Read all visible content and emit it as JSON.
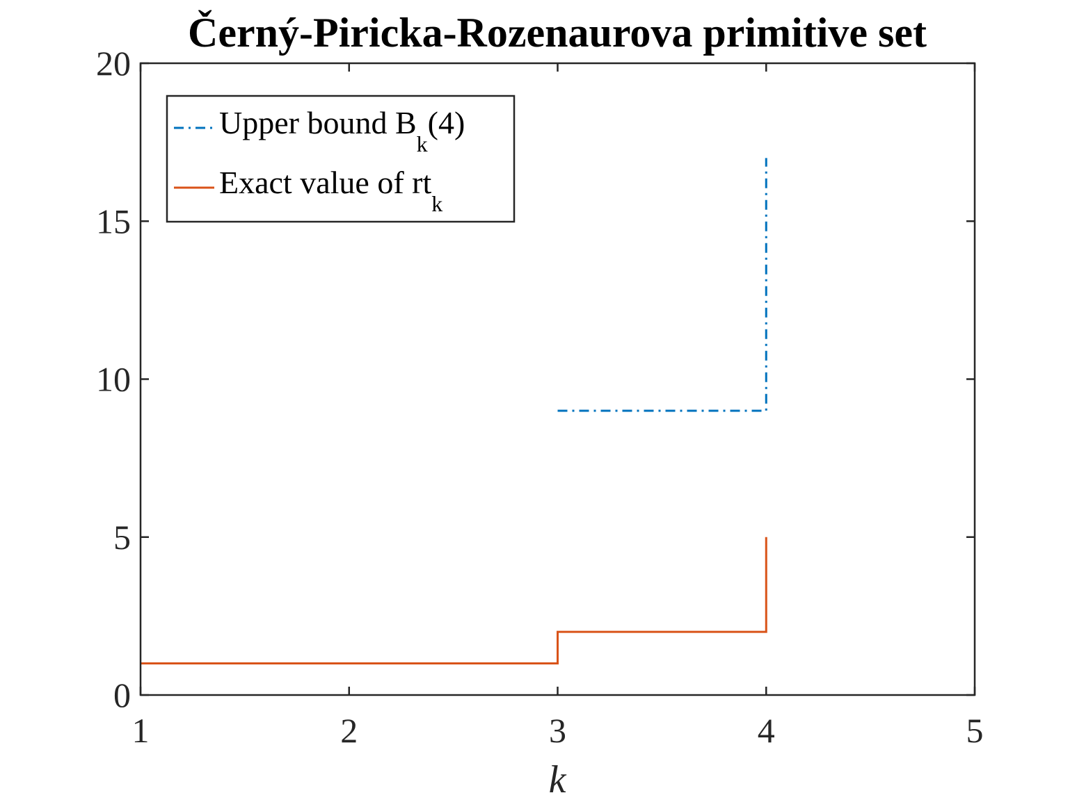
{
  "chart_data": {
    "type": "line",
    "title": "Černý-Piricka-Rozenaurova primitive set",
    "xlabel": "k",
    "ylabel": "",
    "xlim": [
      1,
      5
    ],
    "ylim": [
      0,
      20
    ],
    "xticks": [
      "1",
      "2",
      "3",
      "4",
      "5"
    ],
    "yticks": [
      "0",
      "5",
      "10",
      "15",
      "20"
    ],
    "grid": false,
    "legend_position": "top-left",
    "step": true,
    "series": [
      {
        "name": "Upper bound B_k(4)",
        "legend_main": "Upper bound B",
        "legend_sub": "k",
        "legend_tail": "(4)",
        "color": "#0072BD",
        "style": "dash-dot",
        "x": [
          3,
          4,
          4
        ],
        "y": [
          9,
          9,
          17
        ]
      },
      {
        "name": "Exact value of rt_k",
        "legend_main": "Exact value of rt",
        "legend_sub": "k",
        "legend_tail": "",
        "color": "#D95319",
        "style": "solid",
        "x": [
          1,
          3,
          4,
          4
        ],
        "y": [
          1,
          2,
          2,
          5
        ]
      }
    ]
  }
}
